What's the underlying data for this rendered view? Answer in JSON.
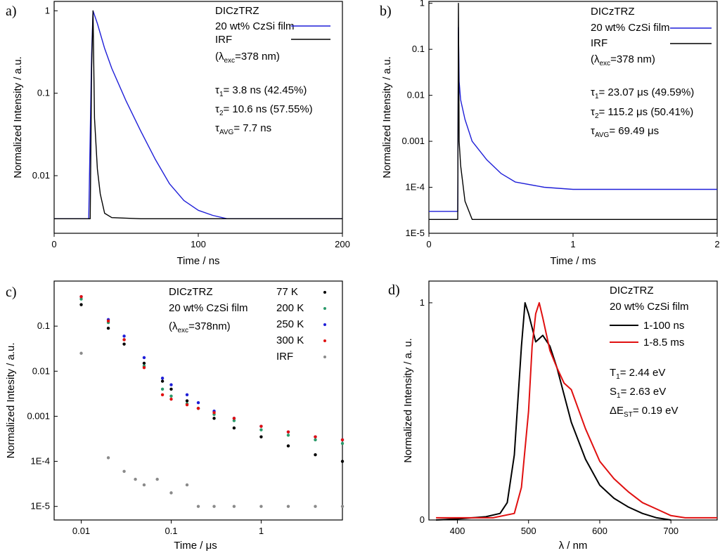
{
  "figure": {
    "panel_labels": [
      "a)",
      "b)",
      "c)",
      "d)"
    ]
  },
  "colors": {
    "blue": "#1f1fd8",
    "black": "#000000",
    "red": "#e01010",
    "green": "#2a9a6a",
    "gray": "#8a8a8a"
  },
  "chart_data": [
    {
      "panel": "a)",
      "type": "line",
      "title": "",
      "xlabel": "Time / ns",
      "ylabel": "Normalized Intensity / a.u.",
      "xlim": [
        0,
        200
      ],
      "ylim": [
        0.002,
        1.3
      ],
      "yscale": "log",
      "x_ticks": [
        0,
        100,
        200
      ],
      "x_tick_labels": [
        "0",
        "100",
        "200"
      ],
      "y_ticks": [
        0.01,
        0.1,
        1
      ],
      "y_tick_labels": [
        "0.01",
        "0.1",
        "1"
      ],
      "legend_title": "DICzTRZ",
      "legend_note": "(λexc=378 nm)",
      "legend_note_parts": [
        "(λ",
        "exc",
        "=378 nm)"
      ],
      "annotations": [
        "τ1= 3.8 ns (42.45%)",
        "τ2= 10.6 ns (57.55%)",
        "τAVG= 7.7 ns"
      ],
      "annotation_parts": [
        [
          "τ",
          "1",
          "= 3.8 ns (42.45%)"
        ],
        [
          "τ",
          "2",
          "= 10.6 ns (57.55%)"
        ],
        [
          "τ",
          "AVG",
          "= 7.7 ns"
        ]
      ],
      "series": [
        {
          "name": "20 wt% CzSi film",
          "color": "#1f1fd8",
          "x": [
            0,
            24,
            26,
            27,
            30,
            35,
            40,
            50,
            60,
            70,
            80,
            90,
            100,
            110,
            120,
            200
          ],
          "y": [
            0.003,
            0.003,
            0.3,
            1.0,
            0.7,
            0.35,
            0.2,
            0.08,
            0.035,
            0.016,
            0.008,
            0.005,
            0.0038,
            0.0033,
            0.003,
            0.003
          ]
        },
        {
          "name": "IRF",
          "color": "#000000",
          "x": [
            0,
            25,
            26,
            27,
            28,
            30,
            32,
            35,
            40,
            60,
            200
          ],
          "y": [
            0.003,
            0.003,
            0.2,
            1.0,
            0.05,
            0.012,
            0.006,
            0.0035,
            0.0031,
            0.003,
            0.003
          ]
        }
      ]
    },
    {
      "panel": "b)",
      "type": "line",
      "title": "",
      "xlabel": "Time / ms",
      "ylabel": "Normalized Intensity / a.u.",
      "xlim": [
        0,
        2
      ],
      "ylim": [
        1e-05,
        1.1
      ],
      "yscale": "log",
      "x_ticks": [
        0,
        1,
        2
      ],
      "x_tick_labels": [
        "0",
        "1",
        "2"
      ],
      "y_ticks": [
        1e-05,
        0.0001,
        0.001,
        0.01,
        0.1,
        1
      ],
      "y_tick_labels": [
        "1E-5",
        "1E-4",
        "0.001",
        "0.01",
        "0.1",
        "1"
      ],
      "legend_title": "DICzTRZ",
      "legend_note": "(λexc=378 nm)",
      "legend_note_parts": [
        "(λ",
        "exc",
        "=378 nm)"
      ],
      "annotations": [
        "τ1= 23.07 μs (49.59%)",
        "τ2= 115.2 μs (50.41%)",
        "τAVG= 69.49 μs"
      ],
      "annotation_parts": [
        [
          "τ",
          "1",
          "= 23.07 μs (49.59%)"
        ],
        [
          "τ",
          "2",
          "= 115.2 μs (50.41%)"
        ],
        [
          "τ",
          "AVG",
          "= 69.49 μs"
        ]
      ],
      "series": [
        {
          "name": "20 wt% CzSi film",
          "color": "#1f1fd8",
          "x": [
            0,
            0.2,
            0.205,
            0.21,
            0.22,
            0.25,
            0.3,
            0.4,
            0.5,
            0.6,
            0.8,
            1.0,
            2.0
          ],
          "y": [
            3e-05,
            3e-05,
            0.3,
            0.02,
            0.008,
            0.003,
            0.001,
            0.0004,
            0.0002,
            0.00013,
            0.0001,
            9e-05,
            9e-05
          ]
        },
        {
          "name": "IRF",
          "color": "#000000",
          "x": [
            0,
            0.2,
            0.205,
            0.21,
            0.22,
            0.25,
            0.3,
            2.0
          ],
          "y": [
            2e-05,
            2e-05,
            1.0,
            0.001,
            0.0003,
            5e-05,
            2e-05,
            2e-05
          ]
        }
      ]
    },
    {
      "panel": "c)",
      "type": "scatter",
      "title": "",
      "xlabel": "Time / μs",
      "xlabel_parts": [
        "Time / ",
        "μ",
        "s"
      ],
      "ylabel": "Normalized Intesity / a.u.",
      "xscale": "log",
      "yscale": "log",
      "xlim": [
        0.005,
        8
      ],
      "ylim": [
        5e-06,
        1
      ],
      "x_ticks": [
        0.01,
        0.1,
        1
      ],
      "x_tick_labels": [
        "0.01",
        "0.1",
        "1"
      ],
      "y_ticks": [
        1e-05,
        0.0001,
        0.001,
        0.01,
        0.1
      ],
      "y_tick_labels": [
        "1E-5",
        "1E-4",
        "0.001",
        "0.01",
        "0.1"
      ],
      "legend_title": "DICzTRZ",
      "legend_subtitle": "20 wt% CzSi film",
      "legend_note": "(λexc=378nm)",
      "legend_note_parts": [
        "(λ",
        "exc",
        "=378nm)"
      ],
      "series": [
        {
          "name": "77 K",
          "color": "#000000",
          "x": [
            0.01,
            0.02,
            0.03,
            0.05,
            0.08,
            0.1,
            0.15,
            0.2,
            0.3,
            0.5,
            1,
            2,
            4,
            8
          ],
          "y": [
            0.3,
            0.09,
            0.04,
            0.015,
            0.006,
            0.004,
            0.0022,
            0.0015,
            0.0009,
            0.00055,
            0.00035,
            0.00022,
            0.00014,
            0.0001
          ]
        },
        {
          "name": "200 K",
          "color": "#2a9a6a",
          "x": [
            0.01,
            0.02,
            0.03,
            0.05,
            0.08,
            0.1,
            0.15,
            0.2,
            0.3,
            0.5,
            1,
            2,
            4,
            8
          ],
          "y": [
            0.4,
            0.12,
            0.05,
            0.013,
            0.004,
            0.0028,
            0.0019,
            0.0015,
            0.0011,
            0.0008,
            0.0005,
            0.00038,
            0.0003,
            0.00025
          ]
        },
        {
          "name": "250 K",
          "color": "#1f1fd8",
          "x": [
            0.01,
            0.02,
            0.03,
            0.05,
            0.08,
            0.1,
            0.15,
            0.2,
            0.3,
            0.5,
            1,
            2,
            4,
            8
          ],
          "y": [
            0.45,
            0.14,
            0.06,
            0.02,
            0.007,
            0.005,
            0.003,
            0.002,
            0.0013,
            0.0009,
            0.0006,
            0.00045,
            0.00035,
            0.0003
          ]
        },
        {
          "name": "300 K",
          "color": "#e01010",
          "x": [
            0.01,
            0.02,
            0.03,
            0.05,
            0.08,
            0.1,
            0.15,
            0.2,
            0.3,
            0.5,
            1,
            2,
            4,
            8
          ],
          "y": [
            0.45,
            0.13,
            0.05,
            0.012,
            0.003,
            0.0024,
            0.0018,
            0.0015,
            0.0012,
            0.0009,
            0.0006,
            0.00045,
            0.00035,
            0.0003
          ]
        },
        {
          "name": "IRF",
          "color": "#8a8a8a",
          "x": [
            0.01,
            0.02,
            0.03,
            0.04,
            0.05,
            0.07,
            0.1,
            0.15,
            0.2,
            0.3,
            0.5,
            1,
            2,
            4,
            8
          ],
          "y": [
            0.025,
            0.00012,
            6e-05,
            4e-05,
            3e-05,
            4e-05,
            2e-05,
            3e-05,
            1e-05,
            1e-05,
            1e-05,
            1e-05,
            1e-05,
            1e-05,
            1e-05
          ]
        }
      ]
    },
    {
      "panel": "d)",
      "type": "line",
      "title": "",
      "xlabel": "λ / nm",
      "ylabel": "Normalized Intensity / a. u.",
      "xlim": [
        360,
        765
      ],
      "ylim": [
        0,
        1.1
      ],
      "x_ticks": [
        400,
        500,
        600,
        700
      ],
      "x_tick_labels": [
        "400",
        "500",
        "600",
        "700"
      ],
      "y_ticks": [
        0,
        1
      ],
      "y_tick_labels": [
        "0",
        "1"
      ],
      "legend_title": "DICzTRZ",
      "legend_subtitle": "20 wt% CzSi film",
      "annotations": [
        "T1= 2.44 eV",
        "S1= 2.63 eV",
        "ΔEST= 0.19 eV"
      ],
      "annotation_parts": [
        [
          "T",
          "1",
          "= 2.44 eV"
        ],
        [
          "S",
          "1",
          "= 2.63 eV"
        ],
        [
          "ΔE",
          "ST",
          "= 0.19 eV"
        ]
      ],
      "series": [
        {
          "name": "1-100 ns",
          "color": "#000000",
          "x": [
            370,
            400,
            440,
            460,
            470,
            480,
            490,
            495,
            500,
            510,
            520,
            530,
            540,
            560,
            580,
            600,
            620,
            640,
            660,
            680,
            700
          ],
          "y": [
            0,
            0.005,
            0.015,
            0.03,
            0.08,
            0.3,
            0.8,
            1.0,
            0.95,
            0.82,
            0.85,
            0.8,
            0.7,
            0.45,
            0.28,
            0.16,
            0.1,
            0.06,
            0.03,
            0.01,
            0
          ]
        },
        {
          "name": "1-8.5 ms",
          "color": "#e01010",
          "x": [
            370,
            450,
            480,
            490,
            500,
            505,
            510,
            515,
            520,
            530,
            540,
            550,
            560,
            580,
            600,
            620,
            640,
            660,
            680,
            700,
            720,
            765
          ],
          "y": [
            0.01,
            0.01,
            0.03,
            0.15,
            0.5,
            0.8,
            0.95,
            1.0,
            0.93,
            0.78,
            0.7,
            0.63,
            0.6,
            0.42,
            0.27,
            0.19,
            0.13,
            0.08,
            0.05,
            0.02,
            0.01,
            0.01
          ]
        }
      ]
    }
  ]
}
